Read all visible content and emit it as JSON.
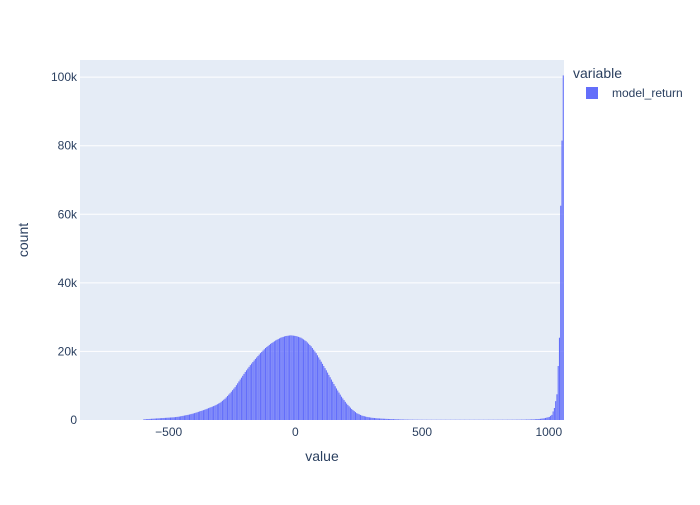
{
  "colors": {
    "background": "#ffffff",
    "plot_background": "#e5ecf6",
    "grid": "#ffffff",
    "bar": "#636efa",
    "text": "#2a3f5f"
  },
  "chart_data": {
    "type": "bar",
    "title": "",
    "xlabel": "value",
    "ylabel": "count",
    "xlim": [
      -850,
      1060
    ],
    "ylim": [
      0,
      105000
    ],
    "grid": true,
    "legend": {
      "title": "variable",
      "placement": "right",
      "entries": [
        "model_return"
      ]
    },
    "x_ticks": [
      {
        "value": -500,
        "label": "−500"
      },
      {
        "value": 0,
        "label": "0"
      },
      {
        "value": 500,
        "label": "500"
      },
      {
        "value": 1000,
        "label": "1000"
      }
    ],
    "y_ticks": [
      {
        "value": 0,
        "label": "0"
      },
      {
        "value": 20000,
        "label": "20k"
      },
      {
        "value": 40000,
        "label": "40k"
      },
      {
        "value": 60000,
        "label": "60k"
      },
      {
        "value": 80000,
        "label": "80k"
      },
      {
        "value": 100000,
        "label": "100k"
      }
    ],
    "bin_width": 5,
    "series": [
      {
        "name": "model_return",
        "bins": [
          {
            "x": -600,
            "y": 200
          },
          {
            "x": -580,
            "y": 300
          },
          {
            "x": -560,
            "y": 400
          },
          {
            "x": -540,
            "y": 500
          },
          {
            "x": -520,
            "y": 600
          },
          {
            "x": -500,
            "y": 700
          },
          {
            "x": -480,
            "y": 800
          },
          {
            "x": -460,
            "y": 1000
          },
          {
            "x": -440,
            "y": 1300
          },
          {
            "x": -420,
            "y": 1600
          },
          {
            "x": -400,
            "y": 2000
          },
          {
            "x": -380,
            "y": 2500
          },
          {
            "x": -360,
            "y": 3000
          },
          {
            "x": -340,
            "y": 3600
          },
          {
            "x": -320,
            "y": 4200
          },
          {
            "x": -300,
            "y": 5000
          },
          {
            "x": -280,
            "y": 6200
          },
          {
            "x": -260,
            "y": 7800
          },
          {
            "x": -240,
            "y": 9600
          },
          {
            "x": -220,
            "y": 11800
          },
          {
            "x": -200,
            "y": 14000
          },
          {
            "x": -180,
            "y": 16000
          },
          {
            "x": -160,
            "y": 17800
          },
          {
            "x": -140,
            "y": 19500
          },
          {
            "x": -120,
            "y": 21000
          },
          {
            "x": -100,
            "y": 22200
          },
          {
            "x": -80,
            "y": 23200
          },
          {
            "x": -60,
            "y": 24000
          },
          {
            "x": -40,
            "y": 24500
          },
          {
            "x": -20,
            "y": 24700
          },
          {
            "x": 0,
            "y": 24500
          },
          {
            "x": 20,
            "y": 24000
          },
          {
            "x": 40,
            "y": 23000
          },
          {
            "x": 60,
            "y": 21500
          },
          {
            "x": 80,
            "y": 19500
          },
          {
            "x": 100,
            "y": 17000
          },
          {
            "x": 120,
            "y": 14500
          },
          {
            "x": 140,
            "y": 11800
          },
          {
            "x": 160,
            "y": 9200
          },
          {
            "x": 180,
            "y": 6800
          },
          {
            "x": 200,
            "y": 4800
          },
          {
            "x": 220,
            "y": 3200
          },
          {
            "x": 240,
            "y": 2000
          },
          {
            "x": 260,
            "y": 1300
          },
          {
            "x": 280,
            "y": 900
          },
          {
            "x": 300,
            "y": 650
          },
          {
            "x": 320,
            "y": 500
          },
          {
            "x": 340,
            "y": 400
          },
          {
            "x": 360,
            "y": 320
          },
          {
            "x": 380,
            "y": 260
          },
          {
            "x": 400,
            "y": 200
          },
          {
            "x": 420,
            "y": 150
          },
          {
            "x": 440,
            "y": 120
          },
          {
            "x": 460,
            "y": 100
          },
          {
            "x": 480,
            "y": 90
          },
          {
            "x": 500,
            "y": 80
          },
          {
            "x": 520,
            "y": 75
          },
          {
            "x": 540,
            "y": 70
          },
          {
            "x": 560,
            "y": 70
          },
          {
            "x": 580,
            "y": 70
          },
          {
            "x": 600,
            "y": 70
          },
          {
            "x": 620,
            "y": 70
          },
          {
            "x": 640,
            "y": 70
          },
          {
            "x": 660,
            "y": 70
          },
          {
            "x": 680,
            "y": 70
          },
          {
            "x": 700,
            "y": 70
          },
          {
            "x": 720,
            "y": 70
          },
          {
            "x": 740,
            "y": 70
          },
          {
            "x": 760,
            "y": 75
          },
          {
            "x": 780,
            "y": 75
          },
          {
            "x": 800,
            "y": 80
          },
          {
            "x": 820,
            "y": 80
          },
          {
            "x": 840,
            "y": 85
          },
          {
            "x": 860,
            "y": 90
          },
          {
            "x": 880,
            "y": 100
          },
          {
            "x": 900,
            "y": 120
          },
          {
            "x": 920,
            "y": 150
          },
          {
            "x": 940,
            "y": 200
          },
          {
            "x": 960,
            "y": 300
          },
          {
            "x": 980,
            "y": 500
          },
          {
            "x": 1000,
            "y": 900
          },
          {
            "x": 1010,
            "y": 1500
          },
          {
            "x": 1020,
            "y": 3500
          },
          {
            "x": 1030,
            "y": 7500
          },
          {
            "x": 1040,
            "y": 24000
          },
          {
            "x": 1045,
            "y": 62500
          },
          {
            "x": 1055,
            "y": 100500
          }
        ]
      }
    ]
  }
}
